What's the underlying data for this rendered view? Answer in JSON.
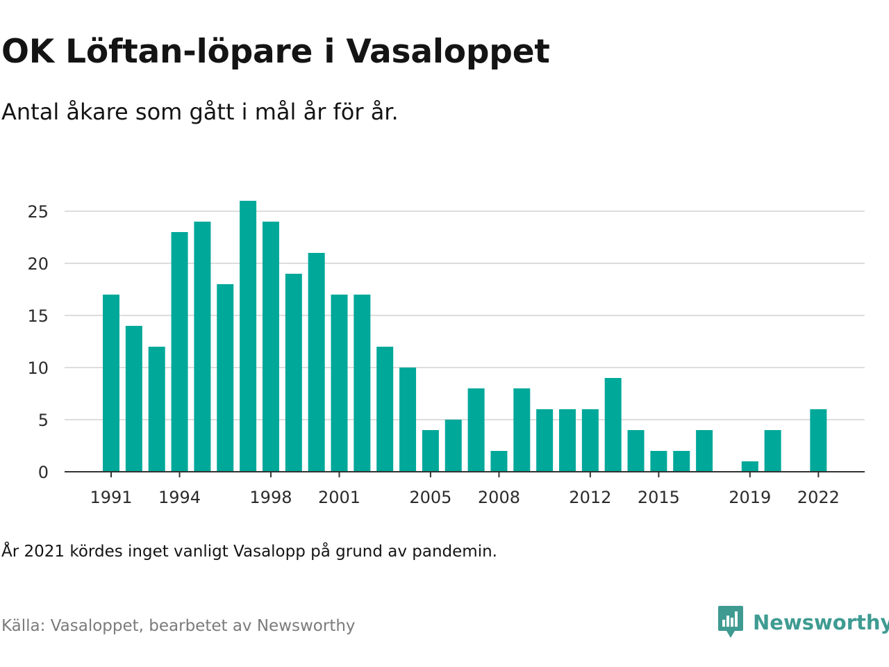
{
  "title": "OK Löftan-löpare i Vasaloppet",
  "subtitle": "Antal åkare som gått i mål år för år.",
  "note": "År 2021 kördes inget vanligt Vasalopp på grund av pandemin.",
  "source": "Källa: Vasaloppet, bearbetet av Newsworthy",
  "brand": {
    "name": "Newsworthy",
    "icon": "newsworthy-logo-icon",
    "color": "#3f9b92"
  },
  "colors": {
    "bar": "#00a89a",
    "grid": "#dddddd",
    "axis": "#333333"
  },
  "chart_data": {
    "type": "bar",
    "title": "OK Löftan-löpare i Vasaloppet",
    "subtitle": "Antal åkare som gått i mål år för år.",
    "xlabel": "",
    "ylabel": "",
    "ylim": [
      0,
      26
    ],
    "grid": true,
    "legend": "none",
    "y_ticks": [
      0,
      5,
      10,
      15,
      20,
      25
    ],
    "x_tick_labels": [
      "1991",
      "1994",
      "1998",
      "2001",
      "2005",
      "2008",
      "2012",
      "2015",
      "2019",
      "2022"
    ],
    "x_range": [
      1991,
      2022
    ],
    "points": [
      {
        "year": 1991,
        "value": 17
      },
      {
        "year": 1992,
        "value": 14
      },
      {
        "year": 1993,
        "value": 12
      },
      {
        "year": 1994,
        "value": 23
      },
      {
        "year": 1995,
        "value": 24
      },
      {
        "year": 1996,
        "value": 18
      },
      {
        "year": 1997,
        "value": 26
      },
      {
        "year": 1998,
        "value": 24
      },
      {
        "year": 1999,
        "value": 19
      },
      {
        "year": 2000,
        "value": 21
      },
      {
        "year": 2001,
        "value": 17
      },
      {
        "year": 2002,
        "value": 17
      },
      {
        "year": 2003,
        "value": 12
      },
      {
        "year": 2004,
        "value": 10
      },
      {
        "year": 2005,
        "value": 4
      },
      {
        "year": 2006,
        "value": 5
      },
      {
        "year": 2007,
        "value": 8
      },
      {
        "year": 2008,
        "value": 2
      },
      {
        "year": 2009,
        "value": 8
      },
      {
        "year": 2010,
        "value": 6
      },
      {
        "year": 2011,
        "value": 6
      },
      {
        "year": 2012,
        "value": 6
      },
      {
        "year": 2013,
        "value": 9
      },
      {
        "year": 2014,
        "value": 4
      },
      {
        "year": 2015,
        "value": 2
      },
      {
        "year": 2016,
        "value": 2
      },
      {
        "year": 2017,
        "value": 4
      },
      {
        "year": 2019,
        "value": 1
      },
      {
        "year": 2020,
        "value": 4
      },
      {
        "year": 2022,
        "value": 6
      }
    ]
  }
}
